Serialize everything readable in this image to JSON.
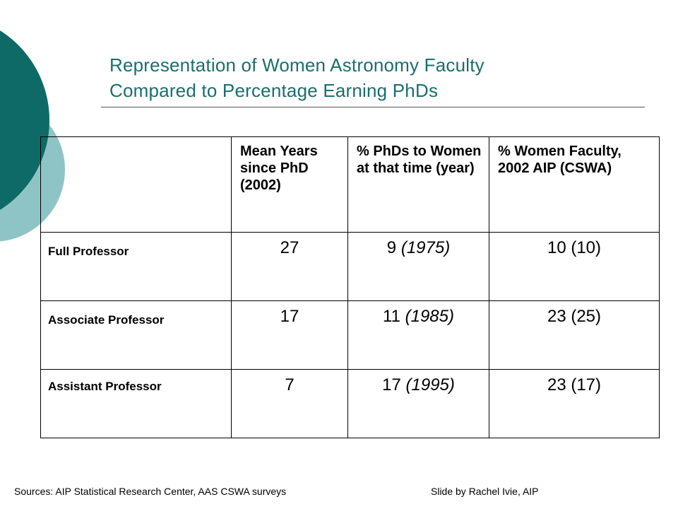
{
  "slide": {
    "title_lines": [
      "Representation of Women Astronomy Faculty",
      "Compared to Percentage Earning PhDs"
    ]
  },
  "table": {
    "headers": [
      "",
      "Mean Years since PhD (2002)",
      "% PhDs to Women at that time (year)",
      "% Women Faculty, 2002 AIP (CSWA)"
    ],
    "rows": [
      {
        "label": "Full Professor",
        "mean_years": "27",
        "phd_pct": "9",
        "phd_year": "(1975)",
        "faculty_pct": "10 (10)"
      },
      {
        "label": "Associate Professor",
        "mean_years": "17",
        "phd_pct": "11",
        "phd_year": "(1985)",
        "faculty_pct": "23 (25)"
      },
      {
        "label": "Assistant Professor",
        "mean_years": "7",
        "phd_pct": "17",
        "phd_year": "(1995)",
        "faculty_pct": "23 (17)"
      }
    ]
  },
  "footer": {
    "sources": "Sources:  AIP Statistical Research Center, AAS CSWA surveys",
    "credit": "Slide by Rachel Ivie, AIP"
  },
  "colors": {
    "dark_teal": "#0e6a66",
    "light_teal": "#8fc4c6",
    "title_text": "#1a6e6e"
  }
}
